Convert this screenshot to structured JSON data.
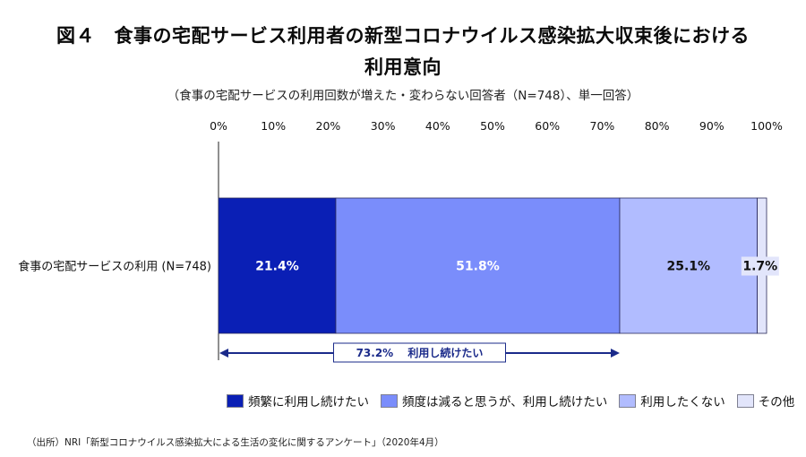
{
  "header": {
    "title_line1": "図４　食事の宅配サービス利用者の新型コロナウイルス感染拡大収束後における",
    "title_line2": "利用意向",
    "subtitle": "（食事の宅配サービスの利用回数が増えた・変わらない回答者（N=748）、単一回答）"
  },
  "chart_data": {
    "type": "bar",
    "orientation": "horizontal",
    "stacked": true,
    "categories": [
      "食事の宅配サービスの利用 (N=748)"
    ],
    "series": [
      {
        "name": "頻繁に利用し続けたい",
        "values": [
          21.4
        ],
        "label": "21.4%",
        "color": "#0a1fb5",
        "label_color": "#ffffff"
      },
      {
        "name": "頻度は減ると思うが、利用し続けたい",
        "values": [
          51.8
        ],
        "label": "51.8%",
        "color": "#7a8dfb",
        "label_color": "#ffffff"
      },
      {
        "name": "利用したくない",
        "values": [
          25.1
        ],
        "label": "25.1%",
        "color": "#b1bcff",
        "label_color": "#111111"
      },
      {
        "name": "その他",
        "values": [
          1.7
        ],
        "label": "1.7%",
        "color": "#e2e5fb",
        "label_color": "#111111"
      }
    ],
    "xlim": [
      0,
      100
    ],
    "ticks": [
      "0%",
      "10%",
      "20%",
      "30%",
      "40%",
      "50%",
      "60%",
      "70%",
      "80%",
      "90%",
      "100%"
    ],
    "annotation": {
      "text": "73.2%　 利用し続けたい",
      "from": 0,
      "to": 73.2
    },
    "legend": "bottom"
  },
  "source": "（出所）NRI「新型コロナウイルス感染拡大による生活の変化に関するアンケート」（2020年4月）"
}
